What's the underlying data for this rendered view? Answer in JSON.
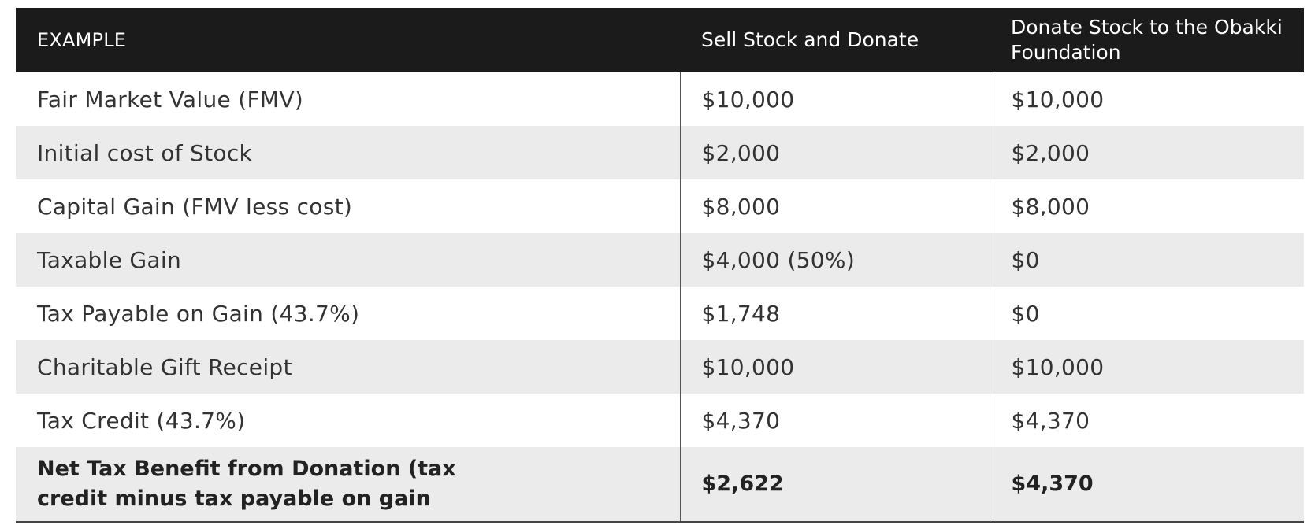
{
  "table": {
    "headers": [
      "EXAMPLE",
      "Sell Stock and Donate",
      "Donate Stock to the  Obakki Foundation"
    ],
    "rows": [
      {
        "label": "Fair Market Value (FMV)",
        "sell": "$10,000",
        "donate": "$10,000"
      },
      {
        "label": "Initial cost of Stock",
        "sell": "$2,000",
        "donate": "$2,000"
      },
      {
        "label": "Capital Gain (FMV less cost)",
        "sell": "$8,000",
        "donate": "$8,000"
      },
      {
        "label": "Taxable Gain",
        "sell": "$4,000 (50%)",
        "donate": "$0"
      },
      {
        "label": "Tax Payable on Gain (43.7%)",
        "sell": "$1,748",
        "donate": "$0"
      },
      {
        "label": "Charitable Gift Receipt",
        "sell": "$10,000",
        "donate": "$10,000"
      },
      {
        "label": "Tax Credit (43.7%)",
        "sell": "$4,370",
        "donate": "$4,370"
      }
    ],
    "total": {
      "label": "Net Tax Benefit from Donation  (tax\ncredit minus tax payable on gain",
      "sell": "$2,622",
      "donate": "$4,370"
    }
  }
}
